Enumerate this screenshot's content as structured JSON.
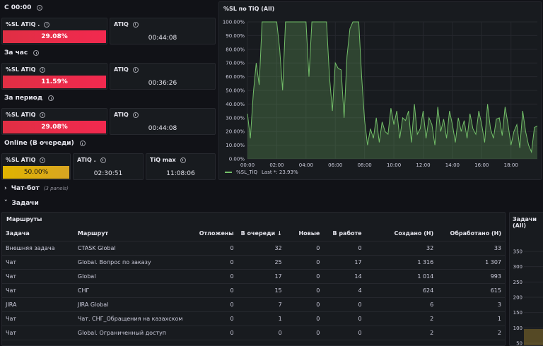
{
  "sections": {
    "since_midnight": "С 00:00",
    "per_hour": "За час",
    "per_period": "За период",
    "online": "Online (В очереди)",
    "chat_bot": "Чат-бот",
    "chat_bot_panels": "(3 panels)",
    "tasks": "Задачи"
  },
  "stats": {
    "r1": {
      "sl_label": "%SL ATIQ .",
      "sl_value": "29.08%",
      "atiq_label": "ATIQ",
      "atiq_value": "00:44:08"
    },
    "r2": {
      "sl_label": "%SL ATIQ",
      "sl_value": "11.59%",
      "atiq_label": "ATIQ",
      "atiq_value": "00:36:26"
    },
    "r3": {
      "sl_label": "%SL ATIQ",
      "sl_value": "29.08%",
      "atiq_label": "ATIQ",
      "atiq_value": "00:44:08"
    },
    "online": {
      "sl_label": "%SL ATIQ",
      "sl_value": "50.00%",
      "atiq_label": "ATIQ .",
      "atiq_value": "02:30:51",
      "max_label": "TiQ max",
      "max_value": "11:08:06"
    }
  },
  "chart_panel": {
    "title": "%SL по TiQ (All)"
  },
  "chart_data": {
    "type": "line",
    "title": "%SL по TiQ (All)",
    "y_ticks": [
      "100.00%",
      "90.00%",
      "80.00%",
      "70.00%",
      "60.00%",
      "50.00%",
      "40.00%",
      "30.00%",
      "20.00%",
      "10.00%",
      "0.00%"
    ],
    "x_ticks": [
      "00:00",
      "02:00",
      "04:00",
      "06:00",
      "08:00",
      "10:00",
      "12:00",
      "14:00",
      "16:00",
      "18:00"
    ],
    "ylim": [
      0,
      100
    ],
    "xlim_hours": [
      0,
      19.8
    ],
    "series": [
      {
        "name": "%SL_TiQ",
        "color": "#73bf69",
        "x": [
          0,
          0.2,
          0.4,
          0.6,
          0.8,
          1.0,
          1.2,
          1.4,
          1.6,
          1.8,
          2.0,
          2.2,
          2.4,
          2.6,
          2.8,
          3.0,
          3.2,
          3.4,
          3.6,
          3.8,
          4.0,
          4.2,
          4.4,
          4.6,
          4.8,
          5.0,
          5.2,
          5.4,
          5.6,
          5.8,
          6.0,
          6.2,
          6.4,
          6.6,
          6.8,
          7.0,
          7.2,
          7.4,
          7.6,
          7.8,
          8.0,
          8.2,
          8.4,
          8.6,
          8.8,
          9.0,
          9.2,
          9.4,
          9.6,
          9.8,
          10.0,
          10.2,
          10.4,
          10.6,
          10.8,
          11.0,
          11.2,
          11.4,
          11.6,
          11.8,
          12.0,
          12.2,
          12.4,
          12.6,
          12.8,
          13.0,
          13.2,
          13.4,
          13.6,
          13.8,
          14.0,
          14.2,
          14.4,
          14.6,
          14.8,
          15.0,
          15.2,
          15.4,
          15.6,
          15.8,
          16.0,
          16.2,
          16.4,
          16.6,
          16.8,
          17.0,
          17.2,
          17.4,
          17.6,
          17.8,
          18.0,
          18.2,
          18.4,
          18.6,
          18.8,
          19.0,
          19.2,
          19.4,
          19.6,
          19.8
        ],
        "values": [
          33,
          15,
          48,
          70,
          54,
          100,
          100,
          100,
          100,
          100,
          100,
          80,
          50,
          100,
          100,
          100,
          100,
          100,
          100,
          100,
          100,
          60,
          100,
          100,
          100,
          100,
          100,
          100,
          60,
          35,
          70,
          66,
          65,
          30,
          75,
          95,
          100,
          100,
          100,
          60,
          28,
          10,
          22,
          15,
          30,
          12,
          27,
          20,
          18,
          37,
          25,
          35,
          15,
          30,
          28,
          35,
          12,
          40,
          18,
          22,
          35,
          15,
          30,
          25,
          10,
          38,
          20,
          29,
          15,
          35,
          25,
          12,
          30,
          20,
          28,
          15,
          33,
          22,
          18,
          35,
          25,
          12,
          40,
          22,
          15,
          29,
          30,
          17,
          38,
          25,
          10,
          20,
          25,
          8,
          35,
          20,
          10,
          5,
          23,
          24
        ]
      }
    ],
    "legend": {
      "name": "%SL_TiQ",
      "stat": "Last *: 23.93%",
      "placement": "bottom-left"
    }
  },
  "routes_panel": {
    "title": "Маршруты",
    "columns": [
      "Задача",
      "Маршрут",
      "Отложены",
      "В очереди",
      "Новые",
      "В работе",
      "Создано (Н)",
      "Обработано (Н)"
    ],
    "sort_indicator": "↓",
    "rows": [
      [
        "Внешняя задача",
        "CTASK Global",
        "0",
        "32",
        "0",
        "0",
        "32",
        "33"
      ],
      [
        "Чат",
        "Global. Вопрос по заказу",
        "0",
        "25",
        "0",
        "17",
        "1 316",
        "1 307"
      ],
      [
        "Чат",
        "Global",
        "0",
        "17",
        "0",
        "14",
        "1 014",
        "993"
      ],
      [
        "Чат",
        "СНГ",
        "0",
        "15",
        "0",
        "4",
        "624",
        "615"
      ],
      [
        "JIRA",
        "JIRA Global",
        "0",
        "7",
        "0",
        "0",
        "6",
        "3"
      ],
      [
        "Чат",
        "Чат. СНГ_Обращения на казахском",
        "0",
        "1",
        "0",
        "0",
        "2",
        "1"
      ],
      [
        "Чат",
        "Global. Ограниченный доступ",
        "0",
        "0",
        "0",
        "0",
        "2",
        "2"
      ]
    ]
  },
  "tasks_panel": {
    "title": "Задачи (All)",
    "y_ticks": [
      "350",
      "300",
      "250",
      "200",
      "150",
      "100",
      "50"
    ]
  }
}
